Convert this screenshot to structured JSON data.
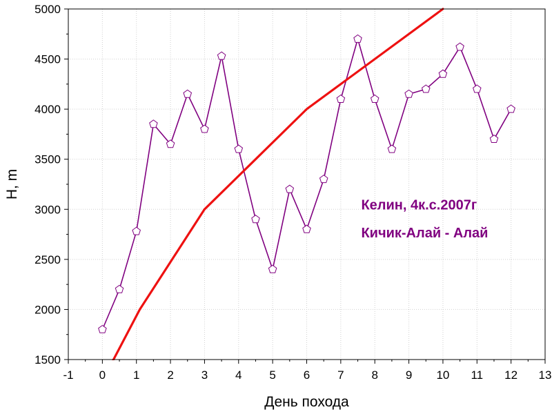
{
  "chart_data": {
    "type": "line",
    "xlabel": "День похода",
    "ylabel": "H, m",
    "xlim": [
      -1,
      13
    ],
    "ylim": [
      1500,
      5000
    ],
    "xticks": [
      -1,
      0,
      1,
      2,
      3,
      4,
      5,
      6,
      7,
      8,
      9,
      10,
      11,
      12,
      13
    ],
    "yticks": [
      1500,
      2000,
      2500,
      3000,
      3500,
      4000,
      4500,
      5000
    ],
    "grid": true,
    "annotations": [
      {
        "text": "Келин, 4к.с.2007г",
        "x": 7.6,
        "y": 3000
      },
      {
        "text": "Кичик-Алай - Алай",
        "x": 7.6,
        "y": 2720
      }
    ],
    "series": [
      {
        "color": "#800080",
        "marker": "pentagon",
        "x": [
          0,
          0.5,
          1,
          1.5,
          2,
          2.5,
          3,
          3.5,
          4,
          4.5,
          5,
          5.5,
          6,
          6.5,
          7,
          7.5,
          8,
          8.5,
          9,
          9.5,
          10,
          10.5,
          11,
          11.5,
          12
        ],
        "y": [
          1800,
          2200,
          2780,
          3850,
          3650,
          4150,
          3800,
          4530,
          3600,
          2900,
          2400,
          3200,
          2800,
          3300,
          4100,
          4700,
          4100,
          3600,
          4150,
          4200,
          4350,
          4620,
          4200,
          3700,
          4000
        ]
      },
      {
        "color": "#ee1111",
        "marker": "none",
        "x": [
          0.25,
          1.1,
          3,
          4.5,
          6,
          10
        ],
        "y": [
          1450,
          2000,
          3000,
          3500,
          4000,
          5000
        ]
      }
    ]
  }
}
